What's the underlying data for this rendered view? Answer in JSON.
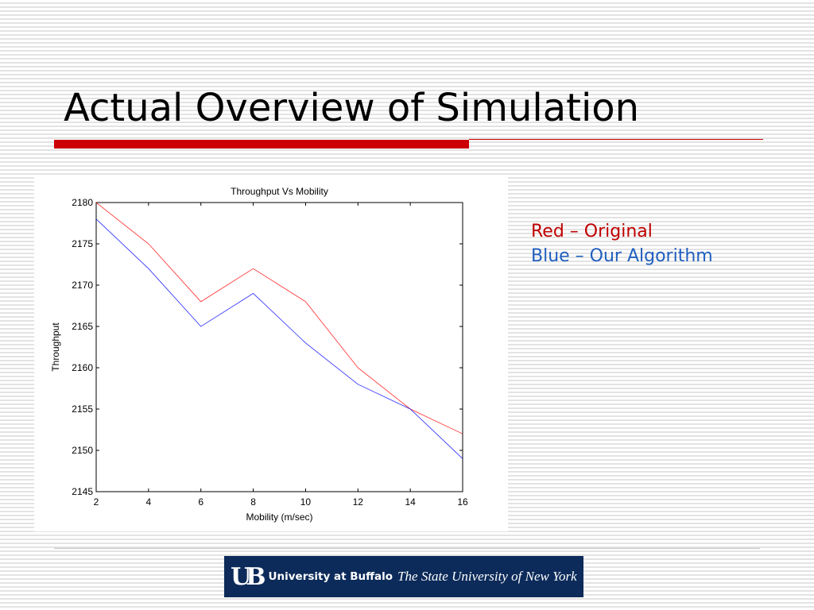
{
  "slide": {
    "title": "Actual Overview of Simulation"
  },
  "legend": {
    "items": [
      {
        "text": "Red – Original",
        "color": "#c00000"
      },
      {
        "text": "Blue – Our Algorithm",
        "color": "#1f5fbf"
      }
    ]
  },
  "logo": {
    "mark": "UB",
    "name": "University at Buffalo",
    "subtitle": "The State University of New York"
  },
  "colors": {
    "accent_rule": "#cc0000",
    "logo_bg": "#0c2b5a"
  },
  "chart_data": {
    "type": "line",
    "title": "Throughput Vs Mobility",
    "xlabel": "Mobility (m/sec)",
    "ylabel": "Throughput",
    "x": [
      2,
      4,
      6,
      8,
      10,
      12,
      14,
      16
    ],
    "xlim": [
      2,
      16
    ],
    "ylim": [
      2145,
      2180
    ],
    "xticks": [
      2,
      4,
      6,
      8,
      10,
      12,
      14,
      16
    ],
    "yticks": [
      2145,
      2150,
      2155,
      2160,
      2165,
      2170,
      2175,
      2180
    ],
    "grid": false,
    "series": [
      {
        "color": "#ff0000",
        "values": [
          2180,
          2175,
          2168,
          2172,
          2168,
          2160,
          2155,
          2152
        ]
      },
      {
        "color": "#0000ff",
        "values": [
          2178,
          2172,
          2165,
          2169,
          2163,
          2158,
          2155,
          2149
        ]
      }
    ]
  }
}
